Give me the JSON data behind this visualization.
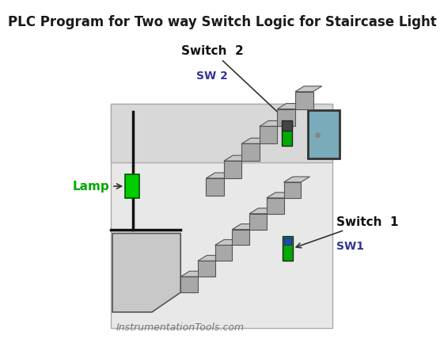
{
  "title": "PLC Program for Two way Switch Logic for Staircase Light",
  "title_fontsize": 12,
  "title_color": "#1a1a1a",
  "bg_color": "#ffffff",
  "box_color": "#e8e8e8",
  "box_edge": "#aaaaaa",
  "upper_box_color": "#d8d8d8",
  "door_color": "#7aabba",
  "door_edge": "#333333",
  "stair_top_color": "#c8c8c8",
  "stair_side_color": "#a8a8a8",
  "stair_edge": "#555555",
  "lamp_color": "#00cc00",
  "lamp_edge": "#005500",
  "lamp_label": "Lamp",
  "lamp_label_color": "#00aa00",
  "switch_green": "#00aa00",
  "switch_dark": "#444444",
  "switch_blue": "#2244cc",
  "switch2_label": "Switch  2",
  "switch2_sub": "SW 2",
  "switch1_label": "Switch  1",
  "switch1_sub": "SW1",
  "label_color": "#111111",
  "sub_color": "#333399",
  "watermark": "InstrumentationTools.com",
  "watermark_color": "#777777"
}
